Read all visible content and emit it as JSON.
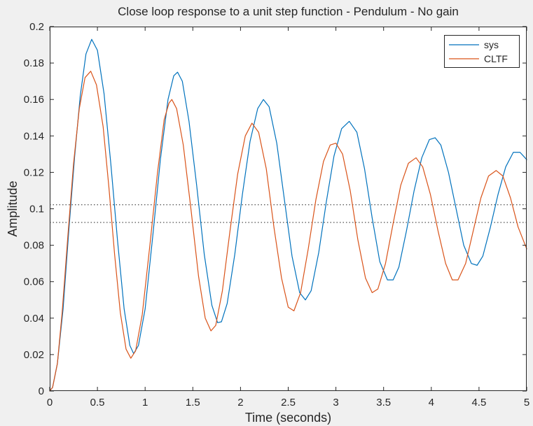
{
  "chart_data": {
    "type": "line",
    "title": "Close loop response to a unit step function - Pendulum - No gain",
    "xlabel": "Time (seconds)",
    "ylabel": "Amplitude",
    "xlim": [
      0,
      5
    ],
    "ylim": [
      0,
      0.2
    ],
    "xticks": [
      0,
      0.5,
      1,
      1.5,
      2,
      2.5,
      3,
      3.5,
      4,
      4.5,
      5
    ],
    "xtick_labels": [
      "0",
      "0.5",
      "1",
      "1.5",
      "2",
      "2.5",
      "3",
      "3.5",
      "4",
      "4.5",
      "5"
    ],
    "yticks": [
      0,
      0.02,
      0.04,
      0.06,
      0.08,
      0.1,
      0.12,
      0.14,
      0.16,
      0.18,
      0.2
    ],
    "ytick_labels": [
      "0",
      "0.02",
      "0.04",
      "0.06",
      "0.08",
      "0.1",
      "0.12",
      "0.14",
      "0.16",
      "0.18",
      "0.2"
    ],
    "grid": false,
    "legend_position": "top-right",
    "settling_band": [
      0.0925,
      0.1022
    ],
    "series": [
      {
        "name": "sys",
        "color": "#0072bd",
        "points": [
          [
            0,
            0
          ],
          [
            0.03,
            0.002
          ],
          [
            0.08,
            0.015
          ],
          [
            0.14,
            0.045
          ],
          [
            0.2,
            0.088
          ],
          [
            0.26,
            0.128
          ],
          [
            0.32,
            0.162
          ],
          [
            0.38,
            0.185
          ],
          [
            0.44,
            0.193
          ],
          [
            0.5,
            0.187
          ],
          [
            0.57,
            0.163
          ],
          [
            0.64,
            0.125
          ],
          [
            0.71,
            0.083
          ],
          [
            0.78,
            0.045
          ],
          [
            0.84,
            0.025
          ],
          [
            0.88,
            0.0205
          ],
          [
            0.93,
            0.025
          ],
          [
            1.0,
            0.045
          ],
          [
            1.08,
            0.085
          ],
          [
            1.16,
            0.127
          ],
          [
            1.24,
            0.16
          ],
          [
            1.3,
            0.173
          ],
          [
            1.34,
            0.175
          ],
          [
            1.39,
            0.17
          ],
          [
            1.46,
            0.148
          ],
          [
            1.54,
            0.113
          ],
          [
            1.62,
            0.075
          ],
          [
            1.7,
            0.047
          ],
          [
            1.76,
            0.0375
          ],
          [
            1.8,
            0.038
          ],
          [
            1.86,
            0.048
          ],
          [
            1.94,
            0.075
          ],
          [
            2.02,
            0.108
          ],
          [
            2.1,
            0.137
          ],
          [
            2.18,
            0.155
          ],
          [
            2.24,
            0.16
          ],
          [
            2.3,
            0.156
          ],
          [
            2.38,
            0.136
          ],
          [
            2.46,
            0.105
          ],
          [
            2.54,
            0.074
          ],
          [
            2.62,
            0.054
          ],
          [
            2.68,
            0.05
          ],
          [
            2.74,
            0.055
          ],
          [
            2.82,
            0.076
          ],
          [
            2.9,
            0.104
          ],
          [
            2.98,
            0.129
          ],
          [
            3.06,
            0.144
          ],
          [
            3.14,
            0.148
          ],
          [
            3.22,
            0.142
          ],
          [
            3.3,
            0.122
          ],
          [
            3.38,
            0.095
          ],
          [
            3.46,
            0.071
          ],
          [
            3.54,
            0.061
          ],
          [
            3.6,
            0.061
          ],
          [
            3.66,
            0.068
          ],
          [
            3.74,
            0.088
          ],
          [
            3.82,
            0.11
          ],
          [
            3.9,
            0.128
          ],
          [
            3.98,
            0.138
          ],
          [
            4.04,
            0.139
          ],
          [
            4.1,
            0.135
          ],
          [
            4.18,
            0.12
          ],
          [
            4.26,
            0.1
          ],
          [
            4.34,
            0.08
          ],
          [
            4.42,
            0.07
          ],
          [
            4.48,
            0.069
          ],
          [
            4.54,
            0.074
          ],
          [
            4.62,
            0.09
          ],
          [
            4.7,
            0.108
          ],
          [
            4.78,
            0.123
          ],
          [
            4.86,
            0.131
          ],
          [
            4.93,
            0.131
          ],
          [
            5.0,
            0.127
          ]
        ]
      },
      {
        "name": "CLTF",
        "color": "#d95319",
        "points": [
          [
            0,
            0
          ],
          [
            0.03,
            0.002
          ],
          [
            0.08,
            0.015
          ],
          [
            0.13,
            0.043
          ],
          [
            0.19,
            0.085
          ],
          [
            0.25,
            0.125
          ],
          [
            0.31,
            0.155
          ],
          [
            0.37,
            0.172
          ],
          [
            0.43,
            0.1755
          ],
          [
            0.49,
            0.168
          ],
          [
            0.56,
            0.145
          ],
          [
            0.62,
            0.112
          ],
          [
            0.68,
            0.075
          ],
          [
            0.74,
            0.043
          ],
          [
            0.8,
            0.023
          ],
          [
            0.85,
            0.018
          ],
          [
            0.9,
            0.022
          ],
          [
            0.97,
            0.042
          ],
          [
            1.05,
            0.08
          ],
          [
            1.13,
            0.12
          ],
          [
            1.2,
            0.149
          ],
          [
            1.25,
            0.158
          ],
          [
            1.28,
            0.16
          ],
          [
            1.33,
            0.155
          ],
          [
            1.4,
            0.135
          ],
          [
            1.48,
            0.1
          ],
          [
            1.56,
            0.063
          ],
          [
            1.63,
            0.04
          ],
          [
            1.69,
            0.033
          ],
          [
            1.74,
            0.036
          ],
          [
            1.81,
            0.055
          ],
          [
            1.89,
            0.088
          ],
          [
            1.97,
            0.119
          ],
          [
            2.05,
            0.14
          ],
          [
            2.12,
            0.147
          ],
          [
            2.19,
            0.142
          ],
          [
            2.27,
            0.122
          ],
          [
            2.35,
            0.09
          ],
          [
            2.43,
            0.062
          ],
          [
            2.5,
            0.046
          ],
          [
            2.56,
            0.044
          ],
          [
            2.63,
            0.054
          ],
          [
            2.71,
            0.078
          ],
          [
            2.79,
            0.105
          ],
          [
            2.87,
            0.126
          ],
          [
            2.94,
            0.135
          ],
          [
            3.0,
            0.136
          ],
          [
            3.07,
            0.13
          ],
          [
            3.15,
            0.11
          ],
          [
            3.23,
            0.083
          ],
          [
            3.31,
            0.062
          ],
          [
            3.38,
            0.054
          ],
          [
            3.44,
            0.056
          ],
          [
            3.52,
            0.07
          ],
          [
            3.6,
            0.092
          ],
          [
            3.68,
            0.113
          ],
          [
            3.76,
            0.125
          ],
          [
            3.84,
            0.128
          ],
          [
            3.91,
            0.123
          ],
          [
            3.99,
            0.108
          ],
          [
            4.07,
            0.088
          ],
          [
            4.15,
            0.07
          ],
          [
            4.22,
            0.061
          ],
          [
            4.28,
            0.061
          ],
          [
            4.36,
            0.07
          ],
          [
            4.44,
            0.088
          ],
          [
            4.52,
            0.106
          ],
          [
            4.6,
            0.118
          ],
          [
            4.68,
            0.121
          ],
          [
            4.75,
            0.118
          ],
          [
            4.83,
            0.106
          ],
          [
            4.91,
            0.09
          ],
          [
            5.0,
            0.078
          ]
        ]
      }
    ]
  }
}
